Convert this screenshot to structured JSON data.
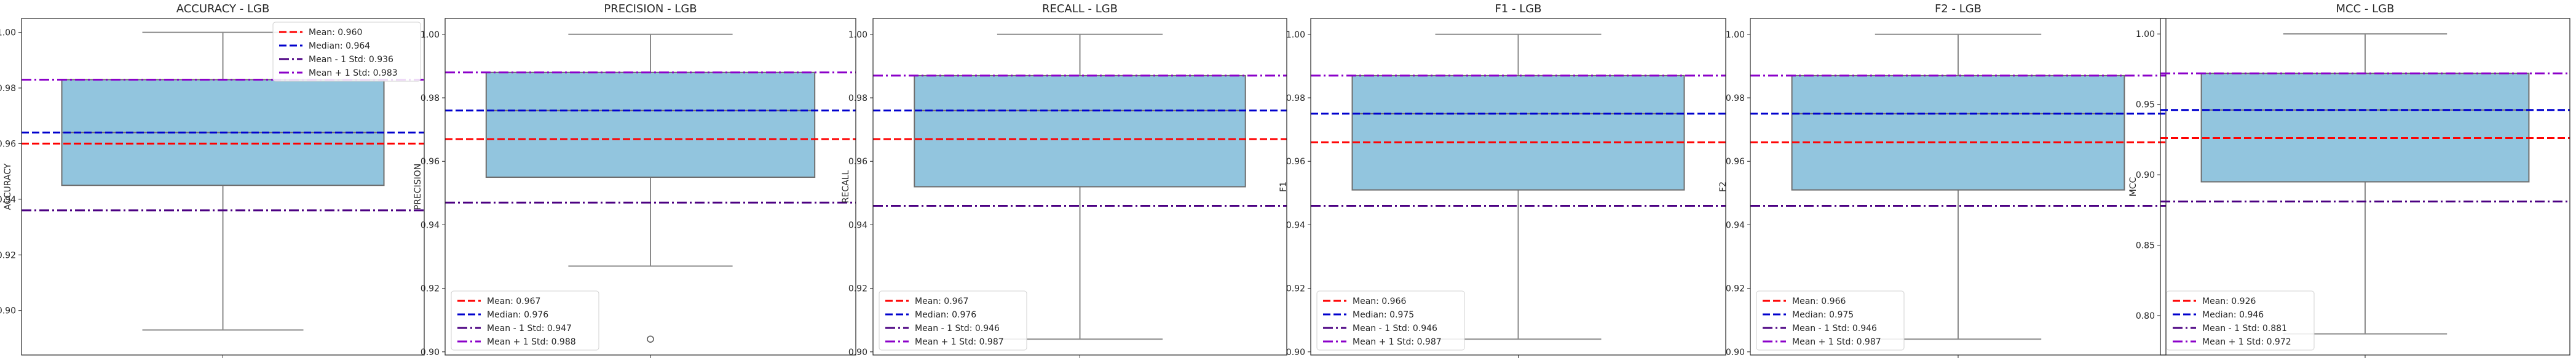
{
  "colors": {
    "box_fill": "#92c5de",
    "box_edge": "#6e6e6e",
    "whisker": "#8a8a8a",
    "mean": "#ff0000",
    "median": "#0000cd",
    "minus_std": "#4b0082",
    "plus_std": "#8b00c9"
  },
  "chart_data": [
    {
      "type": "box",
      "title": "ACCURACY - LGB",
      "ylabel": "ACCURACY",
      "ylim": [
        0.884,
        1.005
      ],
      "yticks": [
        "0.90",
        "0.92",
        "0.94",
        "0.96",
        "0.98",
        "1.00"
      ],
      "ytick_values": [
        0.9,
        0.92,
        0.94,
        0.96,
        0.98,
        1.0
      ],
      "box": {
        "whisker_low": 0.893,
        "q1": 0.945,
        "median": 0.964,
        "q3": 0.983,
        "whisker_high": 1.0,
        "outliers": []
      },
      "lines": {
        "mean": 0.96,
        "median": 0.964,
        "minus_std": 0.936,
        "plus_std": 0.983
      },
      "legend": [
        "Mean: 0.960",
        "Median: 0.964",
        "Mean - 1 Std: 0.936",
        "Mean + 1 Std: 0.983"
      ],
      "legend_position": "top-right"
    },
    {
      "type": "box",
      "title": "PRECISION - LGB",
      "ylabel": "PRECISION",
      "ylim": [
        0.899,
        1.005
      ],
      "yticks": [
        "0.90",
        "0.92",
        "0.94",
        "0.96",
        "0.98",
        "1.00"
      ],
      "ytick_values": [
        0.9,
        0.92,
        0.94,
        0.96,
        0.98,
        1.0
      ],
      "box": {
        "whisker_low": 0.927,
        "q1": 0.955,
        "median": 0.976,
        "q3": 0.988,
        "whisker_high": 1.0,
        "outliers": [
          0.904
        ]
      },
      "lines": {
        "mean": 0.967,
        "median": 0.976,
        "minus_std": 0.947,
        "plus_std": 0.988
      },
      "legend": [
        "Mean: 0.967",
        "Median: 0.976",
        "Mean - 1 Std: 0.947",
        "Mean + 1 Std: 0.988"
      ],
      "legend_position": "bottom-left"
    },
    {
      "type": "box",
      "title": "RECALL - LGB",
      "ylabel": "RECALL",
      "ylim": [
        0.899,
        1.005
      ],
      "yticks": [
        "0.90",
        "0.92",
        "0.94",
        "0.96",
        "0.98",
        "1.00"
      ],
      "ytick_values": [
        0.9,
        0.92,
        0.94,
        0.96,
        0.98,
        1.0
      ],
      "box": {
        "whisker_low": 0.904,
        "q1": 0.952,
        "median": 0.976,
        "q3": 0.987,
        "whisker_high": 1.0,
        "outliers": []
      },
      "lines": {
        "mean": 0.967,
        "median": 0.976,
        "minus_std": 0.946,
        "plus_std": 0.987
      },
      "legend": [
        "Mean: 0.967",
        "Median: 0.976",
        "Mean - 1 Std: 0.946",
        "Mean + 1 Std: 0.987"
      ],
      "legend_position": "bottom-left"
    },
    {
      "type": "box",
      "title": "F1 - LGB",
      "ylabel": "F1",
      "ylim": [
        0.899,
        1.005
      ],
      "yticks": [
        "0.90",
        "0.92",
        "0.94",
        "0.96",
        "0.98",
        "1.00"
      ],
      "ytick_values": [
        0.9,
        0.92,
        0.94,
        0.96,
        0.98,
        1.0
      ],
      "box": {
        "whisker_low": 0.904,
        "q1": 0.951,
        "median": 0.975,
        "q3": 0.987,
        "whisker_high": 1.0,
        "outliers": []
      },
      "lines": {
        "mean": 0.966,
        "median": 0.975,
        "minus_std": 0.946,
        "plus_std": 0.987
      },
      "legend": [
        "Mean: 0.966",
        "Median: 0.975",
        "Mean - 1 Std: 0.946",
        "Mean + 1 Std: 0.987"
      ],
      "legend_position": "bottom-left"
    },
    {
      "type": "box",
      "title": "F2 - LGB",
      "ylabel": "F2",
      "ylim": [
        0.899,
        1.005
      ],
      "yticks": [
        "0.90",
        "0.92",
        "0.94",
        "0.96",
        "0.98",
        "1.00"
      ],
      "ytick_values": [
        0.9,
        0.92,
        0.94,
        0.96,
        0.98,
        1.0
      ],
      "box": {
        "whisker_low": 0.904,
        "q1": 0.951,
        "median": 0.975,
        "q3": 0.987,
        "whisker_high": 1.0,
        "outliers": []
      },
      "lines": {
        "mean": 0.966,
        "median": 0.975,
        "minus_std": 0.946,
        "plus_std": 0.987
      },
      "legend": [
        "Mean: 0.966",
        "Median: 0.975",
        "Mean - 1 Std: 0.946",
        "Mean + 1 Std: 0.987"
      ],
      "legend_position": "bottom-left"
    },
    {
      "type": "box",
      "title": "MCC - LGB",
      "ylabel": "MCC",
      "ylim": [
        0.772,
        1.011
      ],
      "yticks": [
        "0.80",
        "0.85",
        "0.90",
        "0.95",
        "1.00"
      ],
      "ytick_values": [
        0.8,
        0.85,
        0.9,
        0.95,
        1.0
      ],
      "box": {
        "whisker_low": 0.787,
        "q1": 0.895,
        "median": 0.946,
        "q3": 0.972,
        "whisker_high": 1.0,
        "outliers": []
      },
      "lines": {
        "mean": 0.926,
        "median": 0.946,
        "minus_std": 0.881,
        "plus_std": 0.972
      },
      "legend": [
        "Mean: 0.926",
        "Median: 0.946",
        "Mean - 1 Std: 0.881",
        "Mean + 1 Std: 0.972"
      ],
      "legend_position": "bottom-left"
    }
  ]
}
